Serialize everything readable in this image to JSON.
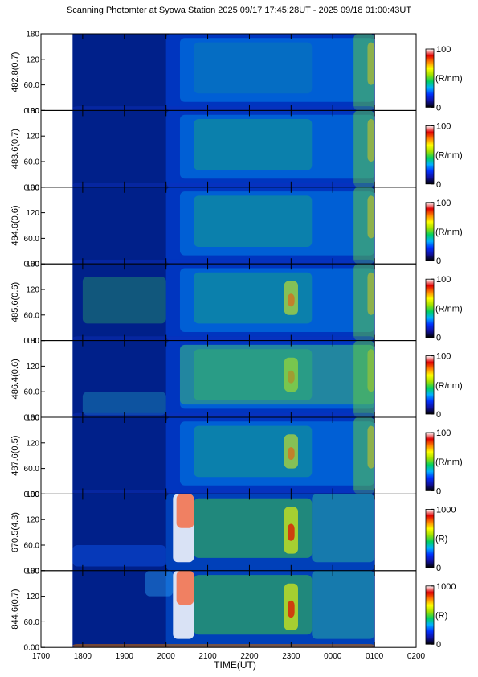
{
  "title": "Scanning Photomter at Syowa Station 2025 09/17 17:45:28UT - 2025 09/18 01:00:43UT",
  "colors": {
    "background_fill": "#00208a",
    "colormap": [
      "#000000",
      "#1010a0",
      "#0030ff",
      "#00b0ff",
      "#00d060",
      "#a0e000",
      "#ffff00",
      "#ff8000",
      "#e00000",
      "#ffffff"
    ]
  },
  "chart_data": {
    "type": "heatmap",
    "xlabel": "TIME(UT)",
    "x_ticks": [
      "1700",
      "1800",
      "1900",
      "2000",
      "2100",
      "2200",
      "2300",
      "0000",
      "0100",
      "0200"
    ],
    "xlim": [
      "1700",
      "0200"
    ],
    "data_span": [
      "17:45:28",
      "01:00:43"
    ],
    "panels": [
      {
        "ylabel": "482.8(0.7)",
        "y_ticks": [
          "0.00",
          "60.0",
          "120",
          "180"
        ],
        "ylim": [
          0,
          180
        ],
        "colorbar": {
          "ticks": [
            "0",
            "100"
          ],
          "unit": "(R/nm)",
          "range": [
            0,
            100
          ]
        },
        "features": [
          "weak, mostly blue emission throughout",
          "brightening at 0030-0100"
        ]
      },
      {
        "ylabel": "483.6(0.7)",
        "y_ticks": [
          "0.00",
          "60.0",
          "120",
          "180"
        ],
        "ylim": [
          0,
          180
        ],
        "colorbar": {
          "ticks": [
            "0",
            "100"
          ],
          "unit": "(R/nm)",
          "range": [
            0,
            100
          ]
        },
        "features": [
          "onset near 2020 UT",
          "green patches 2030-2330",
          "brightening near 0100"
        ]
      },
      {
        "ylabel": "484.6(0.6)",
        "y_ticks": [
          "0.00",
          "60.0",
          "120",
          "180"
        ],
        "ylim": [
          0,
          180
        ],
        "colorbar": {
          "ticks": [
            "0",
            "100"
          ],
          "unit": "(R/nm)",
          "range": [
            0,
            100
          ]
        },
        "features": [
          "onset near 2020 UT",
          "green emission 2030-0100"
        ]
      },
      {
        "ylabel": "485.6(0.6)",
        "y_ticks": [
          "0.00",
          "60.0",
          "120",
          "180"
        ],
        "ylim": [
          0,
          180
        ],
        "colorbar": {
          "ticks": [
            "0",
            "100"
          ],
          "unit": "(R/nm)",
          "range": [
            0,
            100
          ]
        },
        "features": [
          "green emission from 1800",
          "stronger after 2020 UT",
          "yellow-red near 2300"
        ]
      },
      {
        "ylabel": "486.4(0.6)",
        "y_ticks": [
          "0.00",
          "60.0",
          "120",
          "180"
        ],
        "ylim": [
          0,
          180
        ],
        "colorbar": {
          "ticks": [
            "0",
            "100"
          ],
          "unit": "(R/nm)",
          "range": [
            0,
            100
          ]
        },
        "features": [
          "blue-green band 1800-2000 moving to low elevation",
          "bright green 2020-0100",
          "yellow near 2300"
        ]
      },
      {
        "ylabel": "487.6(0.5)",
        "y_ticks": [
          "0.00",
          "60.0",
          "120",
          "180"
        ],
        "ylim": [
          0,
          180
        ],
        "colorbar": {
          "ticks": [
            "0",
            "100"
          ],
          "unit": "(R/nm)",
          "range": [
            0,
            100
          ]
        },
        "features": [
          "weak emission",
          "onset near 2020 UT"
        ]
      },
      {
        "ylabel": "670.5(4.3)",
        "y_ticks": [
          "0.00",
          "60.0",
          "120",
          "180"
        ],
        "ylim": [
          0,
          180
        ],
        "colorbar": {
          "ticks": [
            "0",
            "1000"
          ],
          "unit": "(R)",
          "range": [
            0,
            1000
          ]
        },
        "features": [
          "saturated aurora 2010-2040 UT",
          "green patches 2040-2330",
          "red core near 2300 at 90"
        ]
      },
      {
        "ylabel": "844.6(0.7)",
        "y_ticks": [
          "0.00",
          "60.0",
          "120",
          "180"
        ],
        "ylim": [
          0,
          180
        ],
        "colorbar": {
          "ticks": [
            "0",
            "1000"
          ],
          "unit": "(R)",
          "range": [
            0,
            1000
          ]
        },
        "features": [
          "saturated aurora 2010-2040 UT",
          "green band 2040-0100",
          "red core near 2300 at 90"
        ]
      }
    ]
  }
}
